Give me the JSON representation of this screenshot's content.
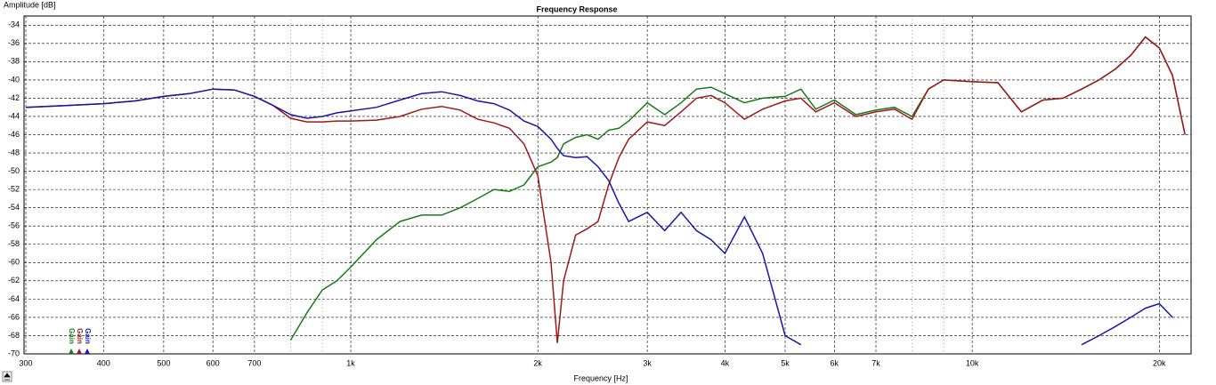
{
  "chart_data": {
    "type": "line",
    "title": "Frequency Response",
    "y_label": "Amplitude [dB]",
    "x_label": "Frequency [Hz]",
    "log_x": true,
    "grid": true,
    "xlim": [
      298,
      22500
    ],
    "ylim": [
      -70,
      -33
    ],
    "xticks": [
      300,
      400,
      500,
      600,
      700,
      {
        "value": 1000,
        "label": "1k"
      },
      {
        "value": 2000,
        "label": "2k"
      },
      {
        "value": 3000,
        "label": "3k"
      },
      {
        "value": 4000,
        "label": "4k"
      },
      {
        "value": 5000,
        "label": "5k"
      },
      {
        "value": 6000,
        "label": "6k"
      },
      {
        "value": 7000,
        "label": "7k"
      },
      {
        "value": 10000,
        "label": "10k"
      },
      {
        "value": 20000,
        "label": "20k"
      }
    ],
    "xminor": [
      800,
      900,
      8000,
      9000
    ],
    "yticks": [
      -70,
      -68,
      -66,
      -64,
      -62,
      -60,
      -58,
      -56,
      -54,
      -52,
      -50,
      -48,
      -46,
      -44,
      -42,
      -40,
      -38,
      -36,
      -34
    ],
    "annotations": [
      "Gain",
      "Gain",
      "Gain"
    ],
    "x": [
      300,
      350,
      400,
      450,
      500,
      550,
      600,
      650,
      700,
      750,
      800,
      850,
      900,
      950,
      1000,
      1100,
      1200,
      1300,
      1400,
      1500,
      1600,
      1700,
      1800,
      1900,
      2000,
      2100,
      2150,
      2200,
      2300,
      2400,
      2500,
      2600,
      2700,
      2800,
      3000,
      3200,
      3400,
      3600,
      3800,
      4000,
      4300,
      4600,
      5000,
      5300,
      5600,
      6000,
      6500,
      7000,
      7500,
      8000,
      8500,
      9000,
      10000,
      11000,
      12000,
      13000,
      14000,
      15000,
      16000,
      17000,
      18000,
      19000,
      20000,
      21000,
      22000
    ],
    "series": [
      {
        "name": "Gain",
        "color": "#1a7a1a",
        "values": [
          null,
          null,
          null,
          null,
          null,
          null,
          null,
          null,
          null,
          null,
          -68.5,
          -65.5,
          -63,
          -62,
          -60.5,
          -57.5,
          -55.5,
          -54.8,
          -54.8,
          -54,
          -53,
          -52,
          -52.2,
          -51.5,
          -49.5,
          -49,
          -48.5,
          -47,
          -46.3,
          -46,
          -46.5,
          -45.5,
          -45.3,
          -44.5,
          -42.5,
          -43.8,
          -42.5,
          -41,
          -40.8,
          -41.5,
          -42.5,
          -42,
          -41.8,
          -41,
          -43.2,
          -42.2,
          -43.8,
          -43.3,
          -43,
          -44,
          -41,
          -40,
          -40.2,
          -40.3,
          -43.5,
          -42.2,
          -42,
          -41,
          -40,
          -38.8,
          -37.3,
          -35.3,
          -36.5,
          -39.5,
          -46
        ]
      },
      {
        "name": "Gain",
        "color": "#a01818",
        "values": [
          -43,
          -42.8,
          -42.6,
          -42.3,
          -41.8,
          -41.5,
          -41,
          -41.1,
          -41.8,
          -42.8,
          -44.2,
          -44.6,
          -44.6,
          -44.5,
          -44.5,
          -44.4,
          -44,
          -43.2,
          -42.9,
          -43.3,
          -44.3,
          -44.7,
          -45.3,
          -47,
          -50.5,
          -60,
          -68.8,
          -62,
          -57,
          -56.3,
          -55.5,
          -51.5,
          -48.5,
          -46.5,
          -44.6,
          -45,
          -43.5,
          -42,
          -41.7,
          -42.5,
          -44.3,
          -43.2,
          -42.3,
          -42,
          -43.5,
          -42.5,
          -44,
          -43.5,
          -43.2,
          -44.3,
          -41,
          -40,
          -40.2,
          -40.3,
          -43.5,
          -42.2,
          -42,
          -41,
          -40,
          -38.8,
          -37.3,
          -35.3,
          -36.5,
          -39.5,
          -46
        ]
      },
      {
        "name": "Gain",
        "color": "#1818a8",
        "values": [
          -43,
          -42.8,
          -42.6,
          -42.3,
          -41.8,
          -41.5,
          -41,
          -41.1,
          -41.8,
          -42.8,
          -43.8,
          -44.2,
          -44,
          -43.6,
          -43.4,
          -43,
          -42.2,
          -41.5,
          -41.3,
          -41.7,
          -42.3,
          -42.6,
          -43.3,
          -44.5,
          -45.1,
          -46.5,
          -47.5,
          -48.3,
          -48.5,
          -48.4,
          -49.5,
          -51,
          -53.5,
          -55.5,
          -54.5,
          -56.5,
          -54.5,
          -56.5,
          -57.5,
          -59,
          -55,
          -59,
          -68,
          -69,
          null,
          null,
          null,
          null,
          null,
          null,
          null,
          null,
          null,
          null,
          null,
          null,
          null,
          -69,
          -68,
          -67,
          -66,
          -65,
          -64.5,
          -66,
          null
        ]
      }
    ]
  }
}
